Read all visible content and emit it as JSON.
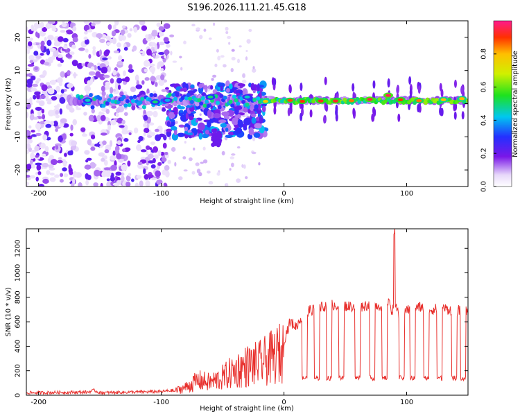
{
  "chart_data": [
    {
      "type": "heatmap",
      "title": "S196.2026.111.21.45.G18",
      "xlabel": "Height of straight line (km)",
      "ylabel": "Frequency (Hz)",
      "xlim": [
        -210,
        150
      ],
      "ylim": [
        -25,
        25
      ],
      "xticks": [
        -200,
        -100,
        0,
        100
      ],
      "xtick_labels": [
        "-200",
        "-100",
        "0",
        "100"
      ],
      "yticks": [
        -20,
        -10,
        0,
        10,
        20
      ],
      "ytick_labels": [
        "-20",
        "-10",
        "0",
        "10",
        "20"
      ],
      "colorbar": {
        "label": "Normalized spectral amplitude",
        "range": [
          0,
          1
        ],
        "ticks": [
          0.0,
          0.2,
          0.4,
          0.6,
          0.8
        ],
        "tick_labels": [
          "0.0",
          "0.2",
          "0.4",
          "0.6",
          "0.8"
        ]
      },
      "regions": [
        {
          "name": "scattered noise",
          "x": [
            -210,
            -95
          ],
          "y": [
            -25,
            25
          ],
          "amplitude": 0.12
        },
        {
          "name": "transition",
          "x": [
            -95,
            -20
          ],
          "y": [
            -13,
            8
          ],
          "amplitude": 0.3
        },
        {
          "name": "signal band",
          "x": [
            -20,
            150
          ],
          "y": [
            -1,
            3
          ],
          "amplitude": 0.9
        }
      ]
    },
    {
      "type": "line",
      "title": "",
      "xlabel": "Height of straight line (km)",
      "ylabel": "SNR (10 * v/v)",
      "xlim": [
        -210,
        150
      ],
      "ylim": [
        0,
        1360
      ],
      "xticks": [
        -200,
        -100,
        0,
        100
      ],
      "xtick_labels": [
        "-200",
        "-100",
        "0",
        "100"
      ],
      "yticks": [
        0,
        200,
        400,
        600,
        800,
        1000,
        1200
      ],
      "ytick_labels": [
        "0",
        "200",
        "400",
        "600",
        "800",
        "1000",
        "1200"
      ],
      "series": [
        {
          "name": "SNR",
          "color": "#e8302d",
          "x": [
            -210,
            -160,
            -155,
            -150,
            -100,
            -90,
            -80,
            -70,
            -60,
            -50,
            -40,
            -30,
            -20,
            -10,
            0,
            5,
            10,
            15,
            20,
            25,
            30,
            40,
            50,
            60,
            70,
            80,
            88,
            90,
            92,
            100,
            110,
            120,
            130,
            140,
            150
          ],
          "y": [
            20,
            25,
            40,
            20,
            30,
            40,
            80,
            150,
            130,
            180,
            250,
            300,
            320,
            380,
            450,
            600,
            560,
            650,
            690,
            700,
            720,
            740,
            730,
            720,
            740,
            730,
            760,
            1360,
            650,
            700,
            720,
            700,
            710,
            690,
            700
          ],
          "dips_to": 140,
          "dip_x": [
            17,
            27,
            37,
            47,
            60,
            72,
            82,
            96,
            105,
            116,
            127,
            139,
            146
          ]
        }
      ]
    }
  ]
}
